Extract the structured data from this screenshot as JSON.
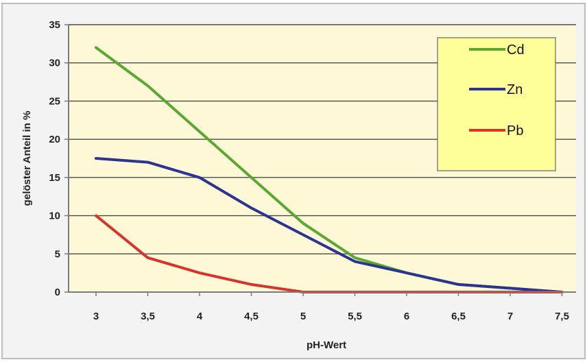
{
  "chart_data": {
    "type": "line",
    "title": "",
    "xlabel": "pH-Wert",
    "ylabel": "gelöster Anteil in %",
    "categories": [
      "3",
      "3,5",
      "4",
      "4,5",
      "5",
      "5,5",
      "6",
      "6,5",
      "7",
      "7,5"
    ],
    "ylim": [
      0,
      35
    ],
    "yticks": [
      0,
      5,
      10,
      15,
      20,
      25,
      30,
      35
    ],
    "grid": true,
    "legend_position": "top-right",
    "colors": {
      "plot_bg": "#fdf9d6",
      "legend_bg": "#ffff99",
      "grid": "#4a4a4a",
      "axis": "#7a7a7a"
    },
    "series": [
      {
        "name": "Cd",
        "color": "#5aa832",
        "values": [
          32,
          27,
          21,
          15,
          9,
          4.5,
          2.5,
          1,
          0.5,
          0
        ]
      },
      {
        "name": "Zn",
        "color": "#2b3490",
        "values": [
          17.5,
          17,
          15,
          11,
          7.5,
          4,
          2.5,
          1,
          0.5,
          0
        ]
      },
      {
        "name": "Pb",
        "color": "#d9342b",
        "values": [
          10,
          4.5,
          2.5,
          1,
          0,
          0,
          0,
          0,
          0,
          0
        ]
      }
    ]
  }
}
